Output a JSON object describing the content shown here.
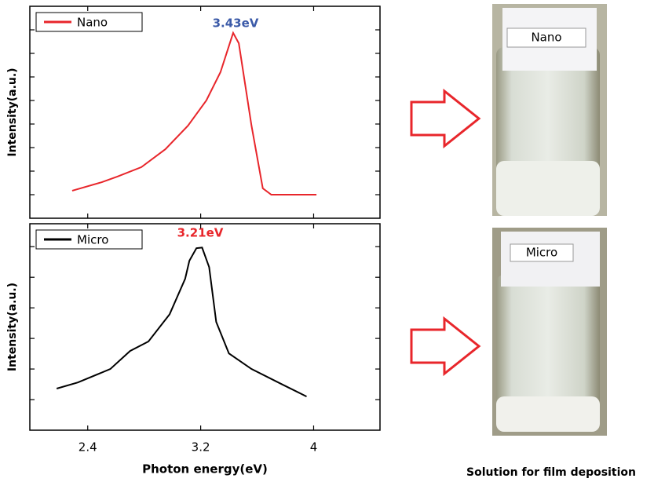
{
  "chart_data": [
    {
      "type": "line",
      "ylabel": "Intensity(a.u.)",
      "annotation": "3.43eV",
      "xlim": [
        1.99,
        4.47
      ],
      "ylim": [
        0,
        9
      ],
      "yticks": [
        1,
        2,
        3,
        4,
        5,
        6,
        7,
        8
      ],
      "series": [
        {
          "name": "Nano",
          "color": "#e8262b",
          "x": [
            2.29,
            2.5,
            2.61,
            2.78,
            2.95,
            3.11,
            3.24,
            3.34,
            3.43,
            3.47,
            3.56,
            3.64,
            3.7,
            4.02
          ],
          "values": [
            1.17,
            1.53,
            1.77,
            2.17,
            2.93,
            3.93,
            5.0,
            6.2,
            7.87,
            7.43,
            3.93,
            1.27,
            1.0,
            1.0
          ]
        }
      ]
    },
    {
      "type": "line",
      "ylabel": "Intensity(a.u.)",
      "xlabel": "Photon energy(eV)",
      "annotation": "3.21eV",
      "xlim": [
        1.99,
        4.47
      ],
      "ylim": [
        0,
        6.75
      ],
      "yticks": [
        1,
        2,
        3,
        4,
        5,
        6
      ],
      "xticks": [
        2.4,
        3.2,
        4.0
      ],
      "series": [
        {
          "name": "Micro",
          "color": "#000000",
          "x": [
            2.18,
            2.33,
            2.56,
            2.7,
            2.83,
            2.98,
            3.09,
            3.12,
            3.17,
            3.21,
            3.26,
            3.31,
            3.4,
            3.56,
            3.78,
            3.95
          ],
          "values": [
            1.36,
            1.56,
            2.0,
            2.59,
            2.9,
            3.79,
            4.95,
            5.54,
            5.95,
            5.97,
            5.33,
            3.54,
            2.51,
            2.0,
            1.49,
            1.1
          ]
        }
      ]
    }
  ],
  "photos": {
    "labels": [
      "Nano",
      "Micro"
    ],
    "caption": "Solution for film deposition"
  }
}
